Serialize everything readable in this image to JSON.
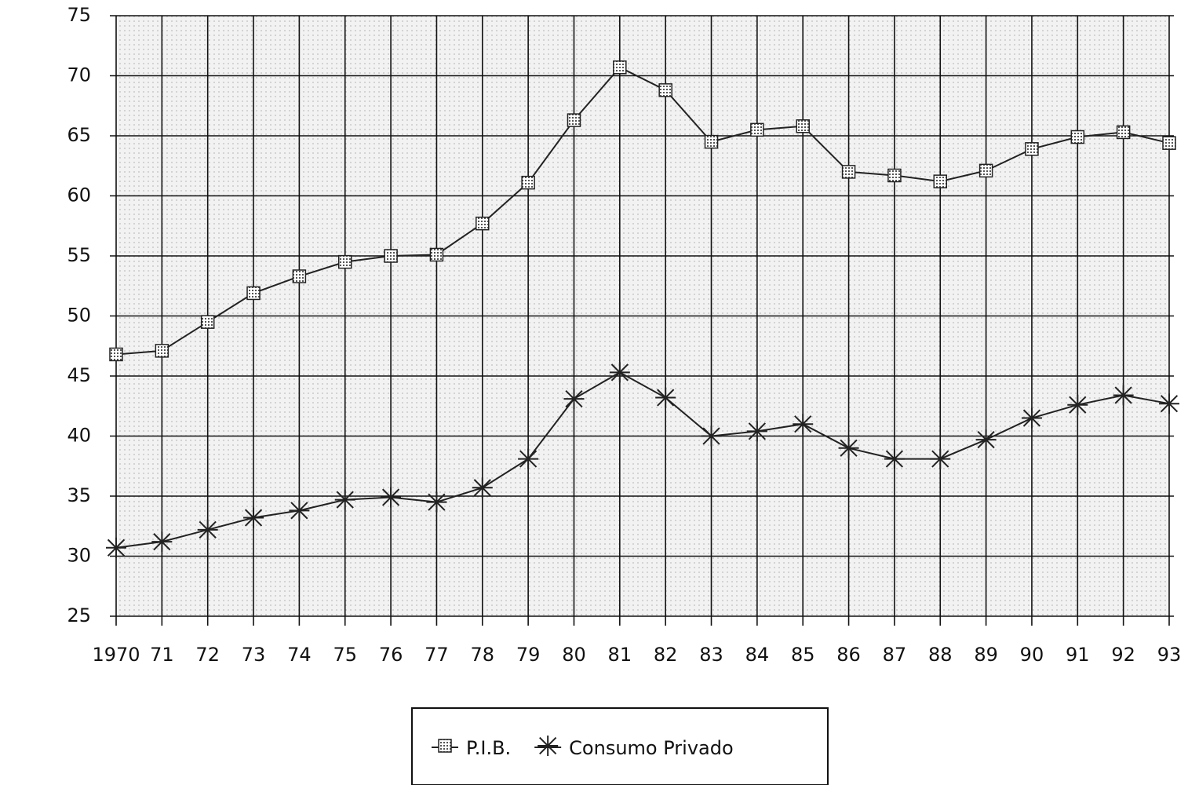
{
  "chart_data": {
    "type": "line",
    "categories": [
      "1970",
      "71",
      "72",
      "73",
      "74",
      "75",
      "76",
      "77",
      "78",
      "79",
      "80",
      "81",
      "82",
      "83",
      "84",
      "85",
      "86",
      "87",
      "88",
      "89",
      "90",
      "91",
      "92",
      "93"
    ],
    "series": [
      {
        "name": "P.I.B.",
        "color": "#222222",
        "marker": "square",
        "values": [
          46.8,
          47.1,
          49.5,
          51.9,
          53.3,
          54.5,
          55.0,
          55.1,
          57.7,
          61.1,
          66.3,
          70.7,
          68.8,
          64.5,
          65.5,
          65.8,
          62.0,
          61.7,
          61.2,
          62.1,
          63.9,
          64.9,
          65.3,
          64.4
        ]
      },
      {
        "name": "Consumo Privado",
        "color": "#222222",
        "marker": "star",
        "values": [
          30.7,
          31.2,
          32.2,
          33.2,
          33.8,
          34.7,
          34.9,
          34.5,
          35.7,
          38.1,
          43.1,
          45.3,
          43.2,
          40.0,
          40.4,
          41.0,
          39.0,
          38.1,
          38.1,
          39.7,
          41.5,
          42.6,
          43.4,
          42.7
        ]
      }
    ],
    "ylim": [
      25,
      75
    ],
    "yticks": [
      25,
      30,
      35,
      40,
      45,
      50,
      55,
      60,
      65,
      70,
      75
    ],
    "grid": true,
    "legend": "bottom"
  }
}
